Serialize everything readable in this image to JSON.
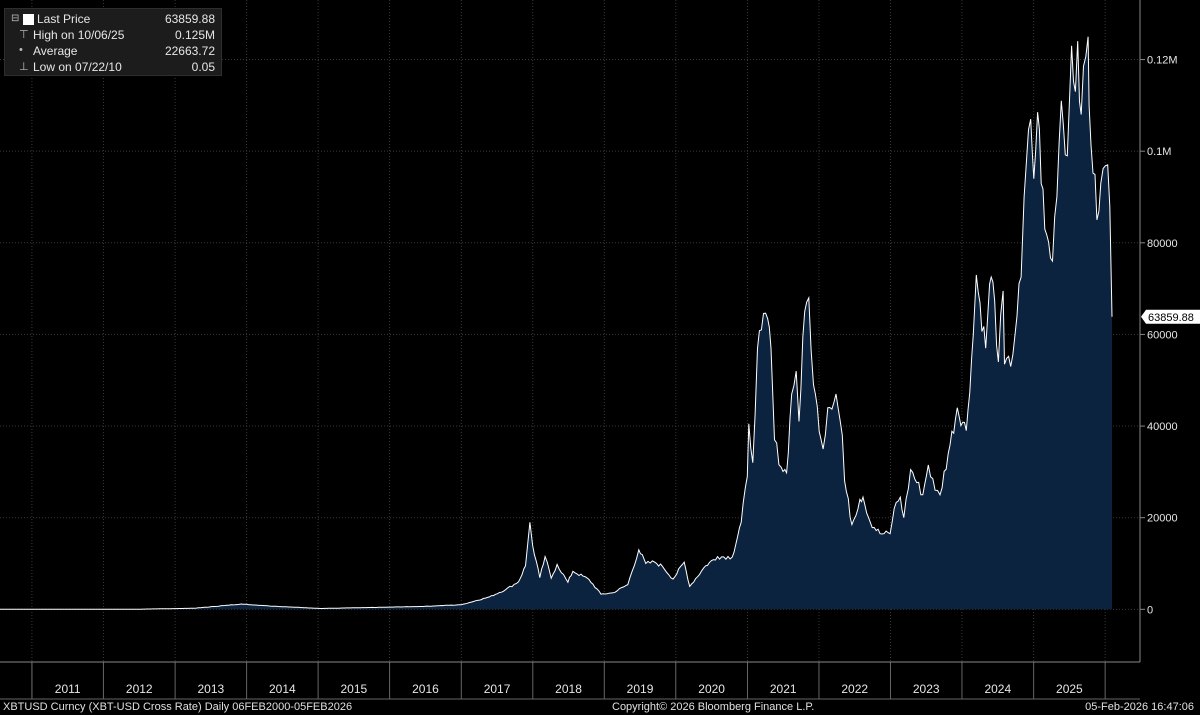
{
  "legend": {
    "last_price_label": "Last Price",
    "last_price_value": "63859.88",
    "high_label": "High on 10/06/25",
    "high_value": "0.125M",
    "average_label": "Average",
    "average_value": "22663.72",
    "low_label": "Low on 07/22/10",
    "low_value": "0.05"
  },
  "footer": {
    "left": "XBTUSD Curncy (XBT-USD Cross Rate) Daily 06FEB2000-05FEB2026",
    "center": "Copyright© 2026 Bloomberg Finance L.P.",
    "right": "05-Feb-2026 16:47:06"
  },
  "colors": {
    "background": "#000000",
    "area_fill": "#0c2340",
    "line": "#ffffff",
    "grid": "#3a3a3a"
  },
  "chart_data": {
    "type": "area",
    "title": "",
    "xlabel": "",
    "ylabel": "",
    "x_ticks": [
      "2011",
      "2012",
      "2013",
      "2014",
      "2015",
      "2016",
      "2017",
      "2018",
      "2019",
      "2020",
      "2021",
      "2022",
      "2023",
      "2024",
      "2025"
    ],
    "y_tick_values": [
      0,
      20000,
      40000,
      60000,
      80000,
      100000,
      120000
    ],
    "y_tick_labels": [
      "0",
      "20000",
      "40000",
      "60000",
      "80000",
      "0.1M",
      "0.12M"
    ],
    "ylim": [
      -11500,
      133000
    ],
    "x_range": [
      "2010-07-22",
      "2026-02-05"
    ],
    "last_value": 63859.88,
    "last_value_label": "63859.88",
    "grid": true,
    "series": [
      {
        "name": "Last Price",
        "points": [
          [
            "2010-07-22",
            0.05
          ],
          [
            "2011-06-08",
            30
          ],
          [
            "2012-06-01",
            6
          ],
          [
            "2013-04-09",
            230
          ],
          [
            "2013-12-04",
            1150
          ],
          [
            "2014-06-01",
            650
          ],
          [
            "2015-01-14",
            180
          ],
          [
            "2015-12-15",
            460
          ],
          [
            "2016-07-01",
            650
          ],
          [
            "2017-01-01",
            1000
          ],
          [
            "2017-05-25",
            2700
          ],
          [
            "2017-08-15",
            4300
          ],
          [
            "2017-10-20",
            6000
          ],
          [
            "2017-11-25",
            9500
          ],
          [
            "2017-12-17",
            19000
          ],
          [
            "2017-12-31",
            14000
          ],
          [
            "2018-02-06",
            6900
          ],
          [
            "2018-03-05",
            11500
          ],
          [
            "2018-04-05",
            6800
          ],
          [
            "2018-05-05",
            9800
          ],
          [
            "2018-06-29",
            5900
          ],
          [
            "2018-07-25",
            8300
          ],
          [
            "2018-10-15",
            6500
          ],
          [
            "2018-12-15",
            3300
          ],
          [
            "2019-02-15",
            3600
          ],
          [
            "2019-05-01",
            5400
          ],
          [
            "2019-06-26",
            13000
          ],
          [
            "2019-08-01",
            10000
          ],
          [
            "2019-09-15",
            10300
          ],
          [
            "2019-10-26",
            9300
          ],
          [
            "2019-12-18",
            6600
          ],
          [
            "2020-02-13",
            10300
          ],
          [
            "2020-03-12",
            5000
          ],
          [
            "2020-06-01",
            9500
          ],
          [
            "2020-08-01",
            11500
          ],
          [
            "2020-10-15",
            11400
          ],
          [
            "2020-11-30",
            19000
          ],
          [
            "2020-12-31",
            29000
          ],
          [
            "2021-01-08",
            40500
          ],
          [
            "2021-01-28",
            32000
          ],
          [
            "2021-02-21",
            57000
          ],
          [
            "2021-03-13",
            61000
          ],
          [
            "2021-04-14",
            63500
          ],
          [
            "2021-05-01",
            57000
          ],
          [
            "2021-05-19",
            37000
          ],
          [
            "2021-06-22",
            31000
          ],
          [
            "2021-07-20",
            29800
          ],
          [
            "2021-08-15",
            47000
          ],
          [
            "2021-09-07",
            52000
          ],
          [
            "2021-09-21",
            41000
          ],
          [
            "2021-10-20",
            65000
          ],
          [
            "2021-11-10",
            68000
          ],
          [
            "2021-12-04",
            49000
          ],
          [
            "2022-01-22",
            35000
          ],
          [
            "2022-02-15",
            44000
          ],
          [
            "2022-03-29",
            47000
          ],
          [
            "2022-04-30",
            38000
          ],
          [
            "2022-05-12",
            28000
          ],
          [
            "2022-06-18",
            18500
          ],
          [
            "2022-07-29",
            24000
          ],
          [
            "2022-08-14",
            24500
          ],
          [
            "2022-09-20",
            19000
          ],
          [
            "2022-11-09",
            16500
          ],
          [
            "2022-12-30",
            16500
          ],
          [
            "2023-01-20",
            22000
          ],
          [
            "2023-02-20",
            24500
          ],
          [
            "2023-03-10",
            20000
          ],
          [
            "2023-04-14",
            30500
          ],
          [
            "2023-06-15",
            25000
          ],
          [
            "2023-07-13",
            31500
          ],
          [
            "2023-08-17",
            26000
          ],
          [
            "2023-09-11",
            25000
          ],
          [
            "2023-10-23",
            34000
          ],
          [
            "2023-12-08",
            44000
          ],
          [
            "2024-01-23",
            39000
          ],
          [
            "2024-02-28",
            60000
          ],
          [
            "2024-03-14",
            73000
          ],
          [
            "2024-05-01",
            57000
          ],
          [
            "2024-05-21",
            71000
          ],
          [
            "2024-06-07",
            71500
          ],
          [
            "2024-07-05",
            54000
          ],
          [
            "2024-07-29",
            69500
          ],
          [
            "2024-08-05",
            53500
          ],
          [
            "2024-09-06",
            53000
          ],
          [
            "2024-10-29",
            72500
          ],
          [
            "2024-11-13",
            90000
          ],
          [
            "2024-12-17",
            107000
          ],
          [
            "2025-01-02",
            94000
          ],
          [
            "2025-01-21",
            108500
          ],
          [
            "2025-02-27",
            83000
          ],
          [
            "2025-04-07",
            76000
          ],
          [
            "2025-05-22",
            111000
          ],
          [
            "2025-06-22",
            99000
          ],
          [
            "2025-07-14",
            123000
          ],
          [
            "2025-08-02",
            113000
          ],
          [
            "2025-08-14",
            124000
          ],
          [
            "2025-09-01",
            108000
          ],
          [
            "2025-10-06",
            125000
          ],
          [
            "2025-10-11",
            110000
          ],
          [
            "2025-11-20",
            85000
          ],
          [
            "2025-12-10",
            93000
          ],
          [
            "2026-01-14",
            97000
          ],
          [
            "2026-01-25",
            88000
          ],
          [
            "2026-02-05",
            63859.88
          ]
        ]
      }
    ]
  }
}
